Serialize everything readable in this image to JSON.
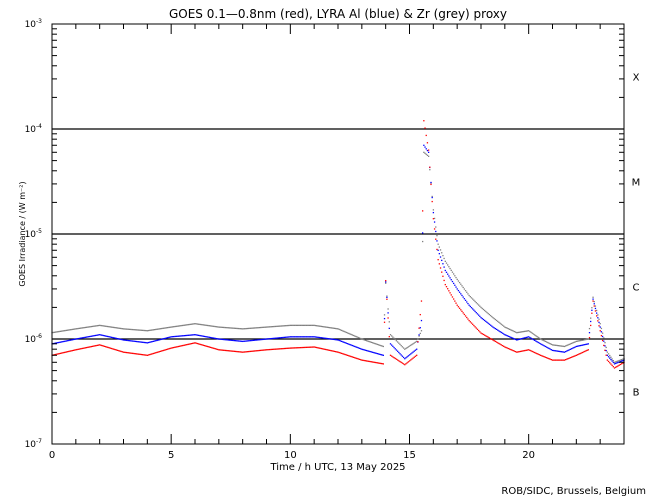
{
  "chart_data": {
    "type": "scatter",
    "title": "GOES 0.1—0.8nm (red), LYRA Al (blue) & Zr (grey) proxy",
    "xlabel": "Time / h UTC, 13 May 2025",
    "ylabel": "GOES Irradiance / (W m⁻²)",
    "xlim": [
      0,
      24
    ],
    "ylim": [
      1e-07,
      0.001
    ],
    "yscale": "log",
    "x_ticks": [
      "0",
      "5",
      "10",
      "15",
      "20"
    ],
    "x_tick_values": [
      0,
      5,
      10,
      15,
      20
    ],
    "y_ticks": [
      {
        "base": "10",
        "exp": "-7",
        "value": 1e-07
      },
      {
        "base": "10",
        "exp": "-6",
        "value": 1e-06
      },
      {
        "base": "10",
        "exp": "-5",
        "value": 1e-05
      },
      {
        "base": "10",
        "exp": "-4",
        "value": 0.0001
      },
      {
        "base": "10",
        "exp": "-3",
        "value": 0.001
      }
    ],
    "reference_lines": [
      1e-06,
      1e-05,
      0.0001
    ],
    "flare_classes": [
      {
        "label": "X",
        "value": 0.000316
      },
      {
        "label": "M",
        "value": 3.16e-05
      },
      {
        "label": "C",
        "value": 3.16e-06
      },
      {
        "label": "B",
        "value": 3.16e-07
      }
    ],
    "x": [
      0,
      1,
      2,
      3,
      4,
      5,
      6,
      7,
      8,
      9,
      10,
      11,
      12,
      13,
      13.9,
      14.0,
      14.2,
      14.8,
      15.3,
      15.5,
      15.6,
      15.8,
      16.0,
      16.2,
      16.5,
      17,
      17.5,
      18,
      18.5,
      19,
      19.5,
      20,
      20.5,
      21,
      21.5,
      22,
      22.5,
      22.7,
      23,
      23.3,
      23.6,
      24
    ],
    "series": [
      {
        "name": "LYRA Zr proxy",
        "color": "#808080",
        "values": [
          1.15e-06,
          1.25e-06,
          1.35e-06,
          1.25e-06,
          1.2e-06,
          1.3e-06,
          1.4e-06,
          1.3e-06,
          1.25e-06,
          1.3e-06,
          1.35e-06,
          1.35e-06,
          1.25e-06,
          1e-06,
          8.5e-07,
          3.4e-06,
          1.1e-06,
          8e-07,
          9.5e-07,
          1.2e-06,
          6e-05,
          5.5e-05,
          1.7e-05,
          8e-06,
          5.5e-06,
          3.7e-06,
          2.6e-06,
          2e-06,
          1.6e-06,
          1.3e-06,
          1.15e-06,
          1.2e-06,
          1e-06,
          8.8e-07,
          8.5e-07,
          9.5e-07,
          1e-06,
          2.5e-06,
          1.4e-06,
          7.5e-07,
          6e-07,
          6.5e-07
        ]
      },
      {
        "name": "LYRA Al proxy",
        "color": "#0000ff",
        "values": [
          9e-07,
          1e-06,
          1.1e-06,
          9.8e-07,
          9.2e-07,
          1.05e-06,
          1.1e-06,
          1e-06,
          9.5e-07,
          1e-06,
          1.05e-06,
          1.05e-06,
          9.8e-07,
          8e-07,
          7e-07,
          3.5e-06,
          9e-07,
          6.5e-07,
          8e-07,
          1.5e-06,
          7e-05,
          6e-05,
          1.6e-05,
          7e-06,
          4.5e-06,
          3e-06,
          2.1e-06,
          1.6e-06,
          1.3e-06,
          1.1e-06,
          9.8e-07,
          1.05e-06,
          9e-07,
          7.8e-07,
          7.5e-07,
          8.5e-07,
          9e-07,
          2.4e-06,
          1.3e-06,
          7e-07,
          5.8e-07,
          6.3e-07
        ]
      },
      {
        "name": "GOES 0.1-0.8nm",
        "color": "#ff0000",
        "values": [
          7e-07,
          7.9e-07,
          8.8e-07,
          7.5e-07,
          7e-07,
          8.2e-07,
          9.2e-07,
          7.9e-07,
          7.5e-07,
          7.9e-07,
          8.2e-07,
          8.4e-07,
          7.5e-07,
          6.3e-07,
          5.8e-07,
          3.6e-06,
          7e-07,
          5.7e-07,
          7e-07,
          2.3e-06,
          0.00012,
          6.3e-05,
          1.4e-05,
          5.7e-06,
          3.3e-06,
          2.1e-06,
          1.5e-06,
          1.14e-06,
          9.8e-07,
          8.4e-07,
          7.5e-07,
          7.9e-07,
          7e-07,
          6.3e-07,
          6.3e-07,
          7e-07,
          7.9e-07,
          2.3e-06,
          1.2e-06,
          6.3e-07,
          5.3e-07,
          6e-07
        ]
      }
    ],
    "credit": "ROB/SIDC, Brussels, Belgium"
  }
}
